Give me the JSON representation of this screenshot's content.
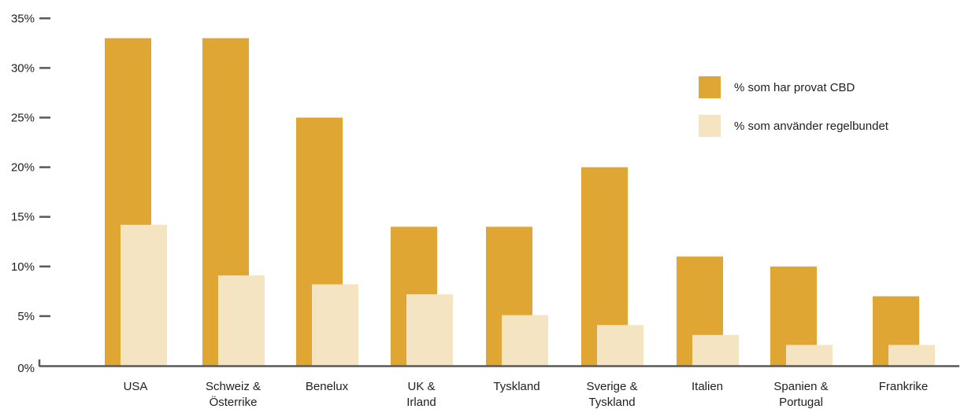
{
  "chart_data": {
    "type": "bar",
    "categories": [
      "USA",
      "Schweiz & Österrike",
      "Benelux",
      "UK & Irland",
      "Tyskland",
      "Sverige & Tyskland",
      "Italien",
      "Spanien & Portugal",
      "Frankrike"
    ],
    "category_lines": [
      [
        "USA"
      ],
      [
        "Schweiz &",
        "Österrike"
      ],
      [
        "Benelux"
      ],
      [
        "UK &",
        "Irland"
      ],
      [
        "Tyskland"
      ],
      [
        "Sverige &",
        "Tyskland"
      ],
      [
        "Italien"
      ],
      [
        "Spanien &",
        "Portugal"
      ],
      [
        "Frankrike"
      ]
    ],
    "series": [
      {
        "name": "% som har provat CBD",
        "color": "#E0A634",
        "values": [
          33,
          33,
          25,
          14,
          14,
          20,
          11,
          10,
          7
        ]
      },
      {
        "name": "% som använder regelbundet",
        "color": "#F5E4C2",
        "values": [
          14.2,
          9.1,
          8.2,
          7.2,
          5.1,
          4.1,
          3.1,
          2.1,
          2.1
        ]
      }
    ],
    "yticks": [
      "0%",
      "5%",
      "10%",
      "15%",
      "20%",
      "25%",
      "30%",
      "35%"
    ],
    "ytick_values": [
      0,
      5,
      10,
      15,
      20,
      25,
      30,
      35
    ],
    "ylim": [
      0,
      35
    ],
    "title": "",
    "xlabel": "",
    "ylabel": "",
    "grid": false,
    "legend_position": "top-right",
    "axis_color": "#595959"
  }
}
